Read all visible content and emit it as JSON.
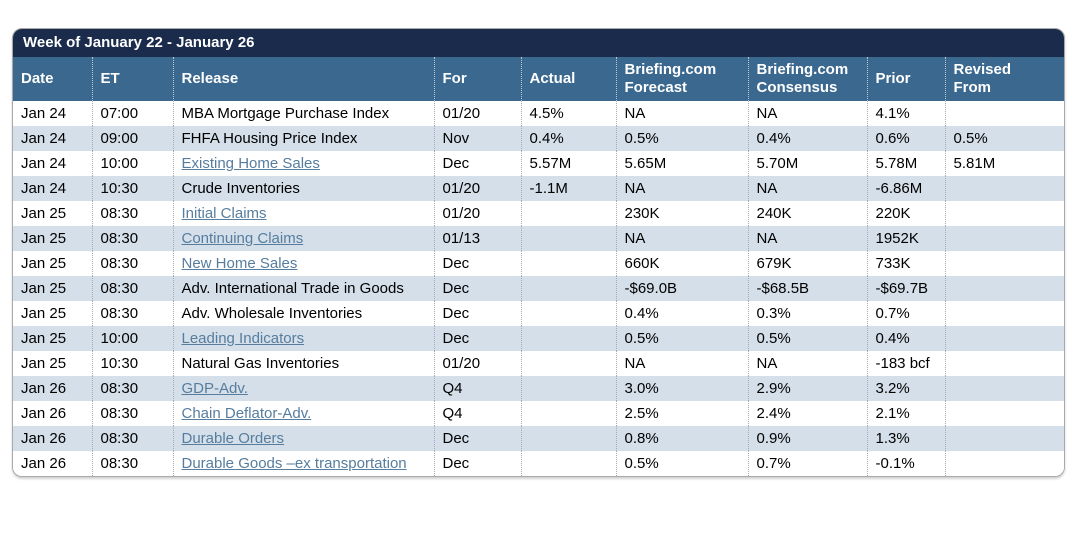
{
  "title_bar": {
    "label": "Week of January 22 - January 26"
  },
  "table": {
    "columns": [
      {
        "key": "date",
        "label": "Date"
      },
      {
        "key": "et",
        "label": "ET"
      },
      {
        "key": "release",
        "label": "Release"
      },
      {
        "key": "for",
        "label": "For"
      },
      {
        "key": "actual",
        "label": "Actual"
      },
      {
        "key": "forecast",
        "label": "Briefing.com Forecast"
      },
      {
        "key": "consensus",
        "label": "Briefing.com Consensus"
      },
      {
        "key": "prior",
        "label": "Prior"
      },
      {
        "key": "revised",
        "label": "Revised From"
      }
    ],
    "rows": [
      {
        "date": "Jan 24",
        "et": "07:00",
        "release": "MBA Mortgage Purchase Index",
        "release_is_link": false,
        "for": "01/20",
        "actual": "4.5%",
        "forecast": "NA",
        "consensus": "NA",
        "prior": "4.1%",
        "revised": ""
      },
      {
        "date": "Jan 24",
        "et": "09:00",
        "release": "FHFA Housing Price Index",
        "release_is_link": false,
        "for": "Nov",
        "actual": "0.4%",
        "forecast": "0.5%",
        "consensus": "0.4%",
        "prior": "0.6%",
        "revised": "0.5%"
      },
      {
        "date": "Jan 24",
        "et": "10:00",
        "release": "Existing Home Sales",
        "release_is_link": true,
        "for": "Dec",
        "actual": "5.57M",
        "forecast": "5.65M",
        "consensus": "5.70M",
        "prior": "5.78M",
        "revised": "5.81M"
      },
      {
        "date": "Jan 24",
        "et": "10:30",
        "release": "Crude Inventories",
        "release_is_link": false,
        "for": "01/20",
        "actual": "-1.1M",
        "forecast": "NA",
        "consensus": "NA",
        "prior": "-6.86M",
        "revised": ""
      },
      {
        "date": "Jan 25",
        "et": "08:30",
        "release": "Initial Claims",
        "release_is_link": true,
        "for": "01/20",
        "actual": "",
        "forecast": "230K",
        "consensus": "240K",
        "prior": "220K",
        "revised": ""
      },
      {
        "date": "Jan 25",
        "et": "08:30",
        "release": "Continuing Claims",
        "release_is_link": true,
        "for": "01/13",
        "actual": "",
        "forecast": "NA",
        "consensus": "NA",
        "prior": "1952K",
        "revised": ""
      },
      {
        "date": "Jan 25",
        "et": "08:30",
        "release": "New Home Sales",
        "release_is_link": true,
        "for": "Dec",
        "actual": "",
        "forecast": "660K",
        "consensus": "679K",
        "prior": "733K",
        "revised": ""
      },
      {
        "date": "Jan 25",
        "et": "08:30",
        "release": "Adv. International Trade in Goods",
        "release_is_link": false,
        "for": "Dec",
        "actual": "",
        "forecast": "-$69.0B",
        "consensus": "-$68.5B",
        "prior": "-$69.7B",
        "revised": ""
      },
      {
        "date": "Jan 25",
        "et": "08:30",
        "release": "Adv. Wholesale Inventories",
        "release_is_link": false,
        "for": "Dec",
        "actual": "",
        "forecast": "0.4%",
        "consensus": "0.3%",
        "prior": "0.7%",
        "revised": ""
      },
      {
        "date": "Jan 25",
        "et": "10:00",
        "release": "Leading Indicators",
        "release_is_link": true,
        "for": "Dec",
        "actual": "",
        "forecast": "0.5%",
        "consensus": "0.5%",
        "prior": "0.4%",
        "revised": ""
      },
      {
        "date": "Jan 25",
        "et": "10:30",
        "release": "Natural Gas Inventories",
        "release_is_link": false,
        "for": "01/20",
        "actual": "",
        "forecast": "NA",
        "consensus": "NA",
        "prior": "-183 bcf",
        "revised": ""
      },
      {
        "date": "Jan 26",
        "et": "08:30",
        "release": "GDP-Adv.",
        "release_is_link": true,
        "for": "Q4",
        "actual": "",
        "forecast": "3.0%",
        "consensus": "2.9%",
        "prior": "3.2%",
        "revised": ""
      },
      {
        "date": "Jan 26",
        "et": "08:30",
        "release": "Chain Deflator-Adv.",
        "release_is_link": true,
        "for": "Q4",
        "actual": "",
        "forecast": "2.5%",
        "consensus": "2.4%",
        "prior": "2.1%",
        "revised": ""
      },
      {
        "date": "Jan 26",
        "et": "08:30",
        "release": "Durable Orders",
        "release_is_link": true,
        "for": "Dec",
        "actual": "",
        "forecast": "0.8%",
        "consensus": "0.9%",
        "prior": "1.3%",
        "revised": ""
      },
      {
        "date": "Jan 26",
        "et": "08:30",
        "release": "Durable Goods –ex transportation",
        "release_is_link": true,
        "for": "Dec",
        "actual": "",
        "forecast": "0.5%",
        "consensus": "0.7%",
        "prior": "-0.1%",
        "revised": ""
      }
    ]
  },
  "colors": {
    "title_bar_bg": "#1a2b4c",
    "header_bg": "#3a688f",
    "row_alt_bg": "#d4dfe9",
    "link": "#567d9e",
    "border": "#a9a9a9",
    "header_text": "#ffffff",
    "body_text": "#000000"
  }
}
